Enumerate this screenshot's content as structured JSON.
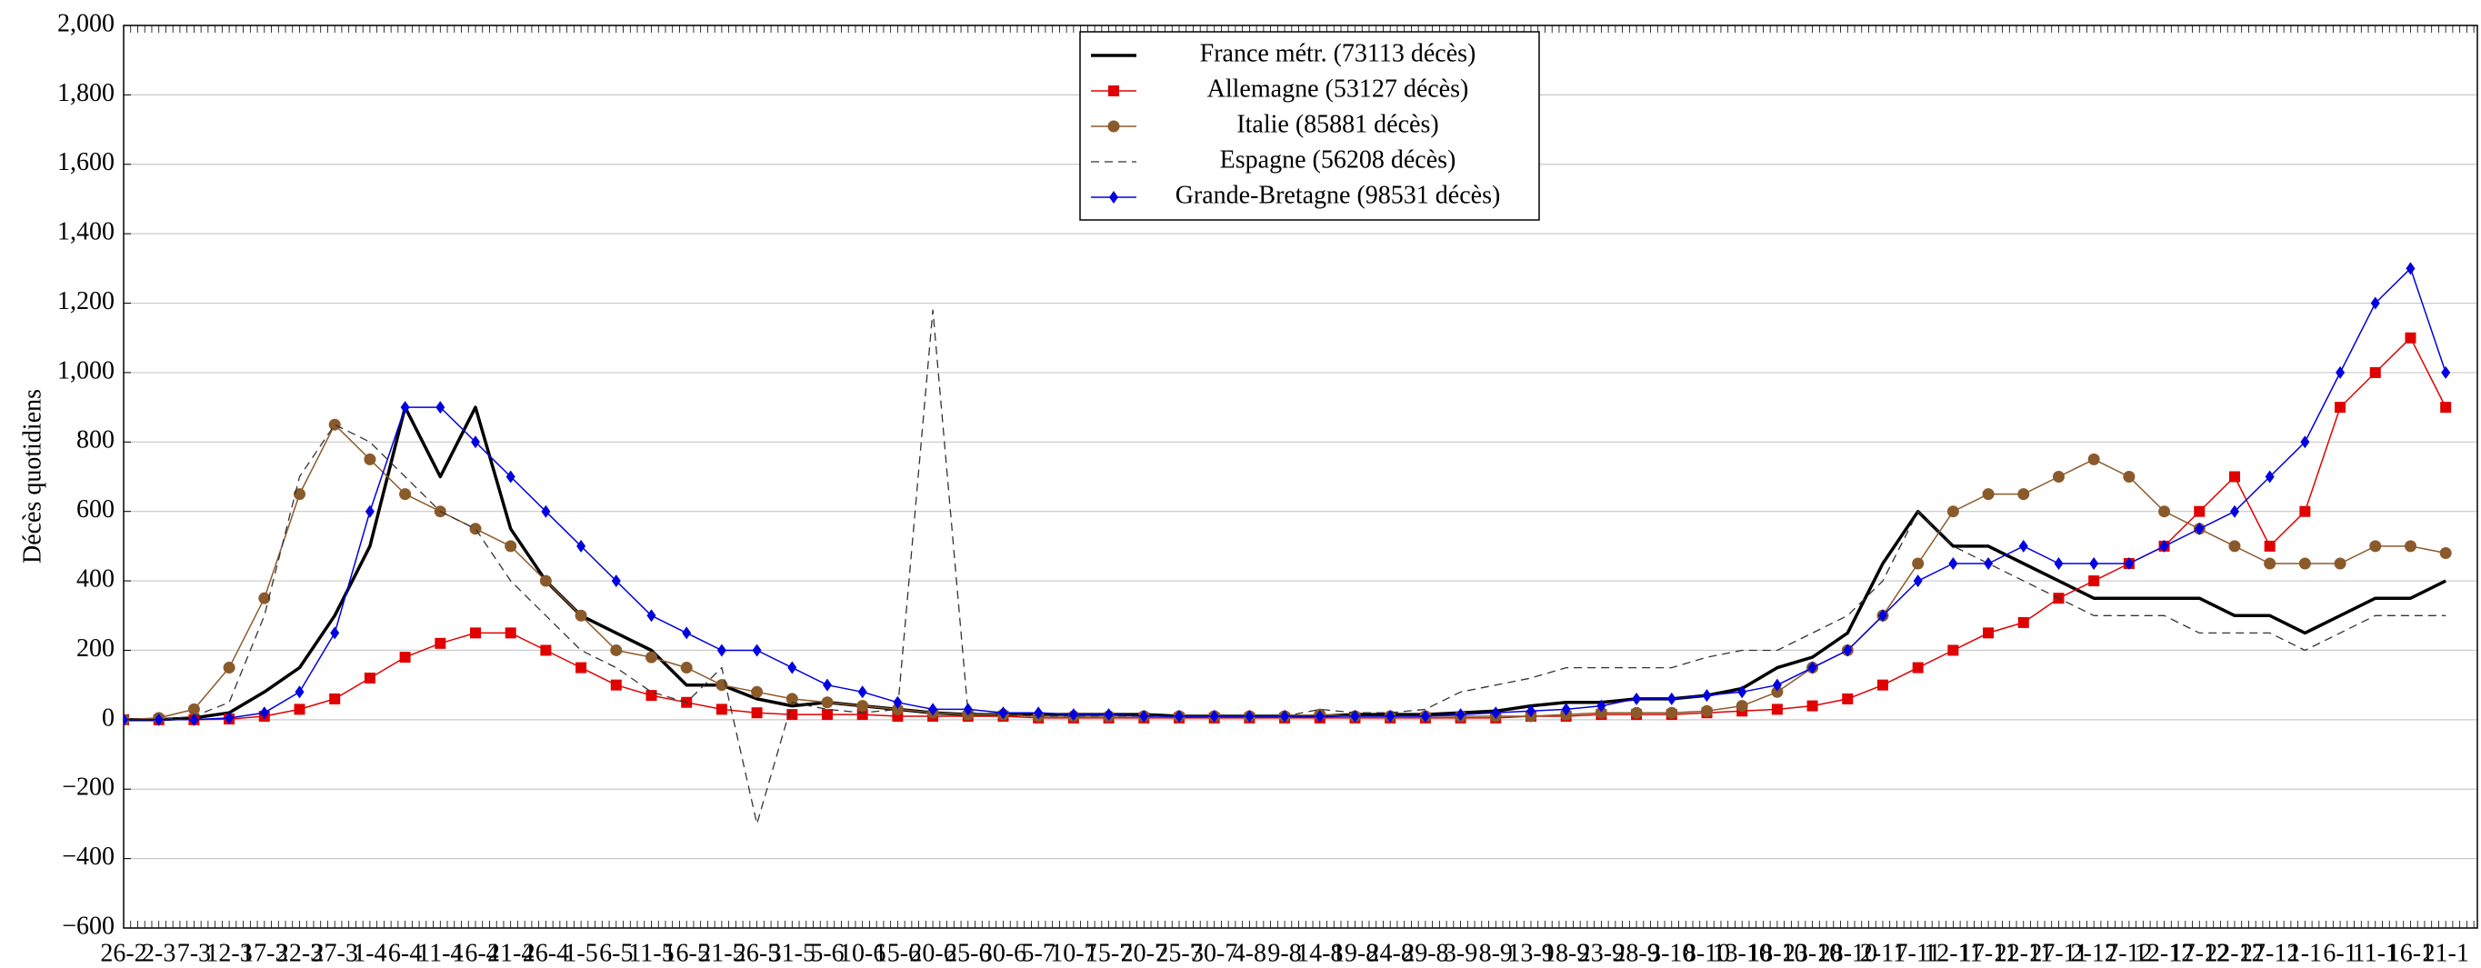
{
  "chart_data": {
    "type": "line",
    "y_label": "Décès quotidiens",
    "categories": [
      "26-2",
      "2-3",
      "7-3",
      "12-3",
      "17-3",
      "22-3",
      "27-3",
      "1-4",
      "6-4",
      "11-4",
      "16-4",
      "21-4",
      "26-4",
      "1-5",
      "6-5",
      "11-5",
      "16-5",
      "21-5",
      "26-5",
      "31-5",
      "5-6",
      "10-6",
      "15-6",
      "20-6",
      "25-6",
      "30-6",
      "5-7",
      "10-7",
      "15-7",
      "20-7",
      "25-7",
      "30-7",
      "4-8",
      "9-8",
      "14-8",
      "19-8",
      "24-8",
      "29-8",
      "3-9",
      "8-9",
      "13-9",
      "18-9",
      "23-9",
      "28-9",
      "3-10",
      "8-10",
      "13-10",
      "18-10",
      "23-10",
      "28-10",
      "2-11",
      "7-11",
      "12-11",
      "17-11",
      "22-11",
      "27-11",
      "2-12",
      "7-12",
      "12-12",
      "17-12",
      "22-12",
      "27-12",
      "1-1",
      "6-1",
      "11-1",
      "16-1",
      "21-1"
    ],
    "series": [
      {
        "name": "France métr. (73113 décès)",
        "color": "#000000",
        "marker": "none",
        "dash": "solid",
        "width": 3.5,
        "values": [
          0,
          0,
          5,
          20,
          80,
          150,
          300,
          500,
          900,
          700,
          900,
          550,
          400,
          300,
          250,
          200,
          100,
          100,
          60,
          40,
          50,
          40,
          30,
          20,
          15,
          15,
          15,
          15,
          15,
          15,
          10,
          10,
          10,
          10,
          10,
          15,
          15,
          15,
          20,
          25,
          40,
          50,
          50,
          60,
          60,
          70,
          90,
          150,
          180,
          250,
          450,
          600,
          500,
          500,
          450,
          400,
          350,
          350,
          350,
          350,
          300,
          300,
          250,
          300,
          350,
          350,
          400
        ]
      },
      {
        "name": "Allemagne (53127 décès)",
        "color": "#e00000",
        "marker": "square",
        "dash": "solid",
        "width": 1.5,
        "values": [
          0,
          0,
          0,
          2,
          10,
          30,
          60,
          120,
          180,
          220,
          250,
          250,
          200,
          150,
          100,
          70,
          50,
          30,
          20,
          15,
          15,
          15,
          10,
          10,
          10,
          10,
          5,
          5,
          5,
          5,
          5,
          5,
          5,
          5,
          5,
          5,
          5,
          5,
          5,
          5,
          10,
          10,
          15,
          15,
          15,
          20,
          25,
          30,
          40,
          60,
          100,
          150,
          200,
          250,
          280,
          350,
          400,
          450,
          500,
          600,
          700,
          500,
          600,
          900,
          1000,
          1100,
          900
        ]
      },
      {
        "name": "Italie (85881 décès)",
        "color": "#8b5a2b",
        "marker": "circle",
        "dash": "solid",
        "width": 1.5,
        "values": [
          0,
          5,
          30,
          150,
          350,
          650,
          850,
          750,
          650,
          600,
          550,
          500,
          400,
          300,
          200,
          180,
          150,
          100,
          80,
          60,
          50,
          40,
          30,
          20,
          15,
          15,
          10,
          10,
          10,
          10,
          10,
          10,
          10,
          10,
          15,
          10,
          10,
          10,
          10,
          10,
          10,
          15,
          20,
          20,
          20,
          25,
          40,
          80,
          150,
          200,
          300,
          450,
          600,
          650,
          650,
          700,
          750,
          700,
          600,
          550,
          500,
          450,
          450,
          450,
          500,
          500,
          480
        ]
      },
      {
        "name": "Espagne (56208 décès)",
        "color": "#333333",
        "marker": "none",
        "dash": "dashed",
        "width": 1.3,
        "values": [
          0,
          0,
          10,
          50,
          300,
          700,
          850,
          800,
          700,
          600,
          550,
          400,
          300,
          200,
          150,
          80,
          50,
          150,
          -300,
          50,
          30,
          20,
          30,
          1180,
          20,
          15,
          10,
          10,
          10,
          10,
          10,
          10,
          10,
          10,
          30,
          20,
          20,
          30,
          80,
          100,
          120,
          150,
          150,
          150,
          150,
          180,
          200,
          200,
          250,
          300,
          400,
          600,
          500,
          450,
          400,
          350,
          300,
          300,
          300,
          250,
          250,
          250,
          200,
          250,
          300,
          300,
          300
        ]
      },
      {
        "name": "Grande-Bretagne (98531 décès)",
        "color": "#0000e0",
        "marker": "diamond",
        "dash": "solid",
        "width": 1.5,
        "values": [
          0,
          0,
          0,
          5,
          20,
          80,
          250,
          600,
          900,
          900,
          800,
          700,
          600,
          500,
          400,
          300,
          250,
          200,
          200,
          150,
          100,
          80,
          50,
          30,
          30,
          20,
          20,
          15,
          15,
          10,
          10,
          10,
          10,
          10,
          10,
          10,
          10,
          10,
          15,
          20,
          25,
          30,
          40,
          60,
          60,
          70,
          80,
          100,
          150,
          200,
          300,
          400,
          450,
          450,
          500,
          450,
          450,
          450,
          500,
          550,
          600,
          700,
          800,
          1000,
          1200,
          1300,
          1000
        ]
      }
    ],
    "ylim": [
      -600,
      2000
    ],
    "yticks": [
      {
        "value": -600,
        "label": "−600"
      },
      {
        "value": -400,
        "label": "−400"
      },
      {
        "value": -200,
        "label": "−200"
      },
      0,
      200,
      400,
      600,
      800,
      {
        "value": 1000,
        "label": "1,000"
      },
      {
        "value": 1200,
        "label": "1,200"
      },
      {
        "value": 1400,
        "label": "1,400"
      },
      {
        "value": 1600,
        "label": "1,600"
      },
      {
        "value": 1800,
        "label": "1,800"
      },
      {
        "value": 2000,
        "label": "2,000"
      }
    ],
    "grid": true,
    "legend": "top"
  }
}
